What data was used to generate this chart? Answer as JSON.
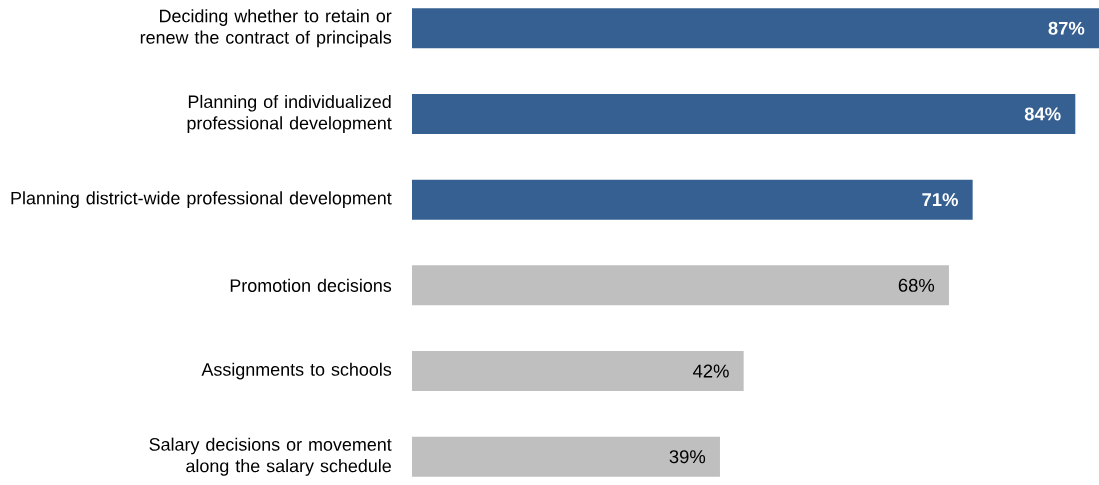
{
  "chart_data": {
    "type": "bar",
    "orientation": "horizontal",
    "categories": [
      "Deciding whether to retain or renew the contract of principals",
      "Planning of individualized professional development",
      "Planning district-wide professional development",
      "Promotion decisions",
      "Assignments to schools",
      "Salary decisions or movement along the salary schedule"
    ],
    "values": [
      87,
      84,
      71,
      68,
      42,
      39
    ],
    "value_labels": [
      "87%",
      "84%",
      "71%",
      "68%",
      "42%",
      "39%"
    ],
    "colors": [
      "#376092",
      "#376092",
      "#376092",
      "#bfbfbf",
      "#bfbfbf",
      "#bfbfbf"
    ],
    "xlim": [
      0,
      87
    ]
  }
}
